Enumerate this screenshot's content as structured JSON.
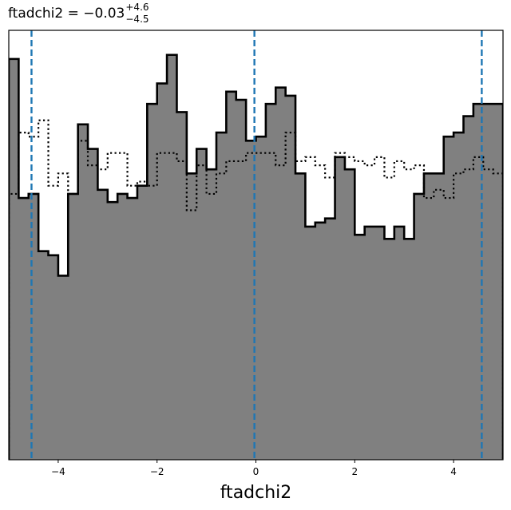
{
  "chart_data": {
    "type": "histogram",
    "title": {
      "base": "ftadchi2 = −0.03",
      "sup": "+4.6",
      "sub": "−4.5"
    },
    "xlabel": "ftadchi2",
    "ylabel": "",
    "xlim": [
      -5.0,
      5.0
    ],
    "ylim": [
      0,
      105
    ],
    "xticks": [
      -4,
      -2,
      0,
      2,
      4
    ],
    "xtick_labels": [
      "−4",
      "−2",
      "0",
      "2",
      "4"
    ],
    "show_yticks": false,
    "grid": false,
    "bin_edges": [
      -5.0,
      -4.8,
      -4.6,
      -4.4,
      -4.2,
      -4.0,
      -3.8,
      -3.6,
      -3.4,
      -3.2,
      -3.0,
      -2.8,
      -2.6,
      -2.4,
      -2.2,
      -2.0,
      -1.8,
      -1.6,
      -1.4,
      -1.2,
      -1.0,
      -0.8,
      -0.6,
      -0.4,
      -0.2,
      0.0,
      0.2,
      0.4,
      0.6,
      0.8,
      1.0,
      1.2,
      1.4,
      1.6,
      1.8,
      2.0,
      2.2,
      2.4,
      2.6,
      2.8,
      3.0,
      3.2,
      3.4,
      3.6,
      3.8,
      4.0,
      4.2,
      4.4,
      4.6,
      4.8,
      5.0
    ],
    "series": [
      {
        "style": "filled-step",
        "fill": "#808080",
        "edge": "#000000",
        "values": [
          98,
          64,
          65,
          51,
          50,
          45,
          65,
          82,
          76,
          66,
          63,
          65,
          64,
          67,
          87,
          92,
          99,
          85,
          70,
          76,
          71,
          80,
          90,
          88,
          78,
          79,
          87,
          91,
          89,
          70,
          57,
          58,
          59,
          74,
          71,
          55,
          57,
          57,
          54,
          57,
          54,
          65,
          70,
          70,
          79,
          80,
          84,
          87,
          87,
          87
        ]
      },
      {
        "style": "dotted-step",
        "edge": "#000000",
        "values": [
          65,
          80,
          79,
          83,
          67,
          70,
          65,
          78,
          72,
          71,
          75,
          75,
          67,
          68,
          67,
          75,
          75,
          73,
          61,
          72,
          65,
          70,
          73,
          73,
          75,
          75,
          75,
          72,
          80,
          73,
          74,
          72,
          69,
          75,
          74,
          73,
          72,
          74,
          69,
          73,
          71,
          72,
          64,
          66,
          64,
          70,
          71,
          74,
          71,
          70
        ]
      }
    ],
    "vlines": {
      "values": [
        -4.54,
        -0.03,
        4.57
      ],
      "color": "#1f77b4",
      "style": "dashed"
    }
  }
}
